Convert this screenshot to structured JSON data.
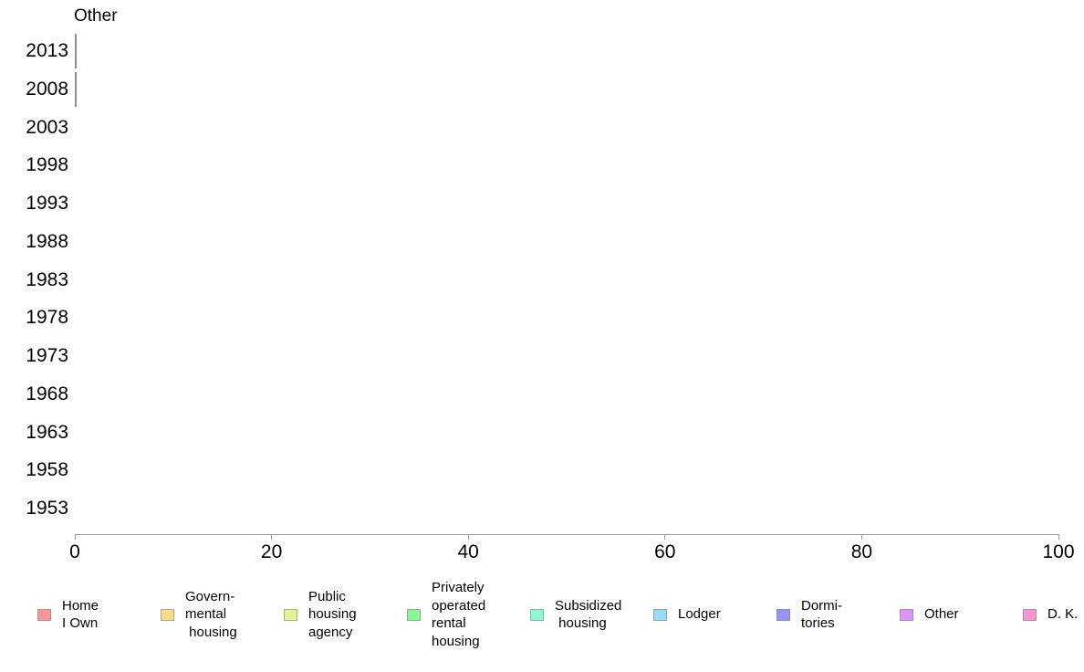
{
  "chart_data": {
    "type": "bar",
    "orientation": "horizontal",
    "title": "Other",
    "categories": [
      "2013",
      "2008",
      "2003",
      "1998",
      "1993",
      "1988",
      "1983",
      "1978",
      "1973",
      "1968",
      "1963",
      "1958",
      "1953"
    ],
    "values": [
      0.2,
      0.2,
      0,
      0,
      0,
      0,
      0,
      0,
      0,
      0,
      0,
      0,
      0
    ],
    "xlabel": "",
    "ylabel": "",
    "xlim": [
      0,
      100
    ],
    "x_ticks": [
      "0",
      "20",
      "40",
      "60",
      "80",
      "100"
    ],
    "grid": false,
    "legend_position": "bottom",
    "axis_color": "#999999",
    "bar_mark_color": "#8f8f8f",
    "legend": [
      {
        "label": "Home\nI Own",
        "color": "#f89595",
        "border": "#b08f8f"
      },
      {
        "label": "Govern-\nmental\n housing",
        "color": "#fbd98e",
        "border": "#b0a488"
      },
      {
        "label": "Public\nhousing\nagency",
        "color": "#dcf79a",
        "border": "#a4b08b"
      },
      {
        "label": "Privately\noperated\nrental\nhousing",
        "color": "#8af795",
        "border": "#88b08d"
      },
      {
        "label": "Subsidized\n housing",
        "color": "#8ef7d4",
        "border": "#8bb0a6"
      },
      {
        "label": "Lodger",
        "color": "#97dbf7",
        "border": "#8aa3b0"
      },
      {
        "label": "Dormi-\ntories",
        "color": "#9595f2",
        "border": "#8c8cb0"
      },
      {
        "label": "Other",
        "color": "#dc95f7",
        "border": "#a48bb0"
      },
      {
        "label": "D. K.",
        "color": "#f795d2",
        "border": "#b08ba3"
      }
    ]
  }
}
